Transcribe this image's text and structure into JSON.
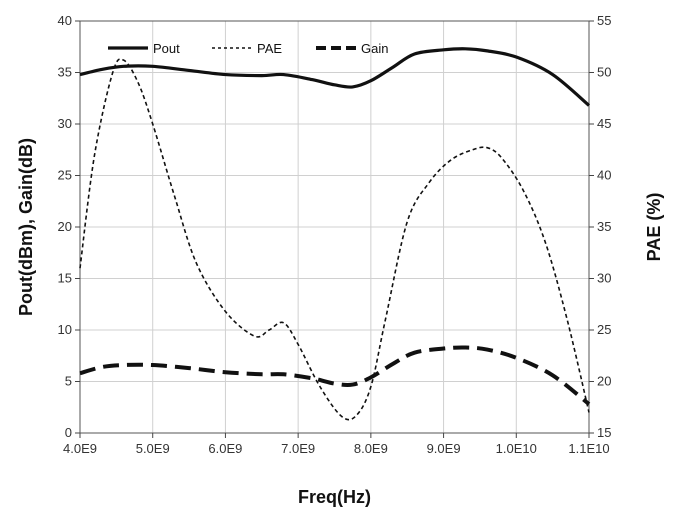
{
  "chart_data": {
    "type": "line",
    "xlabel": "Freq(Hz)",
    "ylabel": "Pout(dBm), Gain(dB)",
    "y2label": "PAE (%)",
    "xlim": [
      4000000000.0,
      11000000000.0
    ],
    "ylim": [
      0,
      40
    ],
    "y2lim": [
      15,
      55
    ],
    "x_tick_labels": [
      "4.0E9",
      "5.0E9",
      "6.0E9",
      "7.0E9",
      "8.0E9",
      "9.0E9",
      "1.0E10",
      "1.1E10"
    ],
    "x_tick_values": [
      4000000000.0,
      5000000000.0,
      6000000000.0,
      7000000000.0,
      8000000000.0,
      9000000000.0,
      10000000000.0,
      11000000000.0
    ],
    "y_tick_labels": [
      "0",
      "5",
      "10",
      "15",
      "20",
      "25",
      "30",
      "35",
      "40"
    ],
    "y_tick_values": [
      0,
      5,
      10,
      15,
      20,
      25,
      30,
      35,
      40
    ],
    "y2_tick_labels": [
      "15",
      "20",
      "25",
      "30",
      "35",
      "40",
      "45",
      "50",
      "55"
    ],
    "y2_tick_values": [
      15,
      20,
      25,
      30,
      35,
      40,
      45,
      50,
      55
    ],
    "grid": true,
    "legend_position": "top-left",
    "series": [
      {
        "name": "Pout",
        "axis": "left",
        "style": "solid",
        "color": "#111111",
        "x": [
          4000000000.0,
          4300000000.0,
          4600000000.0,
          5000000000.0,
          5500000000.0,
          6000000000.0,
          6500000000.0,
          6800000000.0,
          7200000000.0,
          7500000000.0,
          7750000000.0,
          8000000000.0,
          8300000000.0,
          8600000000.0,
          9000000000.0,
          9300000000.0,
          9600000000.0,
          10000000000.0,
          10500000000.0,
          11000000000.0
        ],
        "y": [
          34.8,
          35.3,
          35.6,
          35.6,
          35.2,
          34.8,
          34.7,
          34.8,
          34.3,
          33.8,
          33.6,
          34.2,
          35.5,
          36.8,
          37.2,
          37.3,
          37.1,
          36.5,
          34.8,
          31.8
        ]
      },
      {
        "name": "PAE",
        "axis": "right",
        "style": "dotted",
        "color": "#111111",
        "x": [
          4000000000.0,
          4200000000.0,
          4450000000.0,
          4600000000.0,
          4800000000.0,
          5000000000.0,
          5300000000.0,
          5600000000.0,
          6000000000.0,
          6400000000.0,
          6600000000.0,
          6800000000.0,
          7000000000.0,
          7300000000.0,
          7600000000.0,
          7800000000.0,
          8000000000.0,
          8200000000.0,
          8500000000.0,
          8800000000.0,
          9100000000.0,
          9400000000.0,
          9600000000.0,
          9800000000.0,
          10100000000.0,
          10400000000.0,
          10700000000.0,
          11000000000.0
        ],
        "y": [
          31.0,
          42.0,
          50.0,
          51.2,
          49.0,
          45.0,
          38.0,
          31.5,
          26.8,
          24.4,
          25.0,
          25.7,
          23.6,
          19.5,
          16.6,
          16.7,
          19.5,
          26.0,
          35.5,
          39.3,
          41.5,
          42.5,
          42.7,
          41.7,
          38.5,
          33.5,
          26.0,
          17.0
        ]
      },
      {
        "name": "Gain",
        "axis": "left",
        "style": "dashed",
        "color": "#111111",
        "x": [
          4000000000.0,
          4300000000.0,
          4600000000.0,
          5000000000.0,
          5500000000.0,
          6000000000.0,
          6500000000.0,
          6800000000.0,
          7200000000.0,
          7500000000.0,
          7750000000.0,
          8000000000.0,
          8300000000.0,
          8600000000.0,
          9000000000.0,
          9300000000.0,
          9600000000.0,
          10000000000.0,
          10500000000.0,
          11000000000.0
        ],
        "y": [
          5.8,
          6.4,
          6.6,
          6.6,
          6.3,
          5.9,
          5.7,
          5.7,
          5.3,
          4.8,
          4.7,
          5.4,
          6.7,
          7.8,
          8.2,
          8.3,
          8.1,
          7.3,
          5.6,
          2.8
        ]
      }
    ]
  }
}
